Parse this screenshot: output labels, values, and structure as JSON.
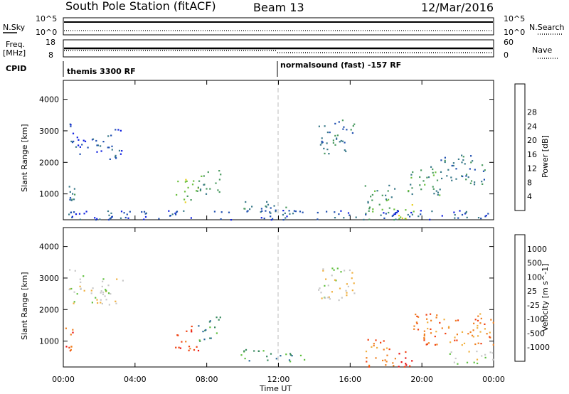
{
  "header": {
    "station": "South Pole Station (fitACF)",
    "beam": "Beam 13",
    "date": "12/Mar/2016"
  },
  "top_panels": {
    "nsky_label": "N.Sky",
    "nsearch_label": "N.Search",
    "nsky_ticks": [
      "10^5",
      "10^0"
    ],
    "nsearch_ticks": [
      "10^5",
      "10^0"
    ],
    "freq_label": "Freq.",
    "freq_unit": "[MHz]",
    "freq_ticks": [
      "18",
      "8"
    ],
    "nave_label": "Nave",
    "nave_ticks": [
      "60",
      "0"
    ],
    "cpid_label": "CPID",
    "cpid_segments": [
      {
        "label": "themis 3300 RF",
        "start_hour": 0
      },
      {
        "label": "normalsound (fast) -157 RF",
        "start_hour": 12
      }
    ]
  },
  "chart_data": [
    {
      "type": "heatmap",
      "panel": "power",
      "ylabel": "Slant Range [km]",
      "xlabel": "",
      "x_ticks": [
        "00:00",
        "04:00",
        "08:00",
        "12:00",
        "16:00",
        "20:00",
        "00:00"
      ],
      "y_ticks": [
        "1000",
        "2000",
        "3000",
        "4000"
      ],
      "xlim_hours": [
        0,
        24
      ],
      "ylim_km": [
        180,
        4600
      ],
      "colorbar": {
        "label": "Power [dB]",
        "ticks": [
          "4",
          "8",
          "12",
          "16",
          "20",
          "24",
          "28"
        ],
        "colors": [
          "#1020e0",
          "#2050b0",
          "#3a7a8a",
          "#4a9a60",
          "#6cc040",
          "#e8d020",
          "#f0a020",
          "#f06010",
          "#e81010"
        ]
      },
      "echo_regions": [
        {
          "t": [
            0.3,
            1.2
          ],
          "r": [
            2200,
            3300
          ],
          "level": 1
        },
        {
          "t": [
            1.3,
            2.5
          ],
          "r": [
            2300,
            2900
          ],
          "level": 1
        },
        {
          "t": [
            2.5,
            3.3
          ],
          "r": [
            2100,
            3200
          ],
          "level": 1
        },
        {
          "t": [
            0.3,
            0.7
          ],
          "r": [
            800,
            1400
          ],
          "level": 2
        },
        {
          "t": [
            6.2,
            7.5
          ],
          "r": [
            700,
            1500
          ],
          "level": 4
        },
        {
          "t": [
            7.5,
            8.8
          ],
          "r": [
            1000,
            1800
          ],
          "level": 3
        },
        {
          "t": [
            9.8,
            11.8
          ],
          "r": [
            400,
            800
          ],
          "level": 2
        },
        {
          "t": [
            11.8,
            13.5
          ],
          "r": [
            350,
            600
          ],
          "level": 2
        },
        {
          "t": [
            14.2,
            16.2
          ],
          "r": [
            2300,
            3400
          ],
          "level": 2
        },
        {
          "t": [
            16.8,
            18.5
          ],
          "r": [
            200,
            1300
          ],
          "level": 3
        },
        {
          "t": [
            18.5,
            19.6
          ],
          "r": [
            200,
            700
          ],
          "level": 5
        },
        {
          "t": [
            19.2,
            21.0
          ],
          "r": [
            900,
            1900
          ],
          "level": 3
        },
        {
          "t": [
            21.0,
            23.5
          ],
          "r": [
            1300,
            2300
          ],
          "level": 2
        },
        {
          "t": [
            0.0,
            24.0
          ],
          "r": [
            200,
            500
          ],
          "level": 1
        }
      ]
    },
    {
      "type": "heatmap",
      "panel": "velocity",
      "ylabel": "Slant Range [km]",
      "xlabel": "Time UT",
      "x_ticks": [
        "00:00",
        "04:00",
        "08:00",
        "12:00",
        "16:00",
        "20:00",
        "00:00"
      ],
      "y_ticks": [
        "1000",
        "2000",
        "3000",
        "4000"
      ],
      "xlim_hours": [
        0,
        24
      ],
      "ylim_km": [
        180,
        4600
      ],
      "colorbar": {
        "label": "Velocity [m s^-1]",
        "ticks": [
          "1000",
          "500",
          "100",
          "25",
          "-25",
          "-100",
          "-500",
          "-1000"
        ],
        "colors": [
          "#2040b0",
          "#2a6a9a",
          "#3a8a60",
          "#60c040",
          "#c8c8c8",
          "#f0b040",
          "#f08020",
          "#f04010",
          "#e81010"
        ]
      },
      "echo_regions": [
        {
          "t": [
            0.0,
            0.5
          ],
          "r": [
            700,
            1500
          ],
          "level": 7
        },
        {
          "t": [
            0.3,
            1.2
          ],
          "r": [
            2200,
            3300
          ],
          "level": 4
        },
        {
          "t": [
            1.3,
            3.3
          ],
          "r": [
            2100,
            3000
          ],
          "level": 4
        },
        {
          "t": [
            6.2,
            7.5
          ],
          "r": [
            700,
            1500
          ],
          "level": 7
        },
        {
          "t": [
            7.5,
            8.8
          ],
          "r": [
            1000,
            1800
          ],
          "level": 2
        },
        {
          "t": [
            9.8,
            11.8
          ],
          "r": [
            400,
            800
          ],
          "level": 2
        },
        {
          "t": [
            11.8,
            13.5
          ],
          "r": [
            350,
            700
          ],
          "level": 2
        },
        {
          "t": [
            14.2,
            16.2
          ],
          "r": [
            2300,
            3400
          ],
          "level": 4
        },
        {
          "t": [
            16.8,
            18.5
          ],
          "r": [
            200,
            1100
          ],
          "level": 6
        },
        {
          "t": [
            18.5,
            19.6
          ],
          "r": [
            200,
            700
          ],
          "level": 8
        },
        {
          "t": [
            19.5,
            24.0
          ],
          "r": [
            900,
            1900
          ],
          "level": 6
        },
        {
          "t": [
            21.5,
            24.0
          ],
          "r": [
            300,
            700
          ],
          "level": 4
        }
      ]
    }
  ]
}
